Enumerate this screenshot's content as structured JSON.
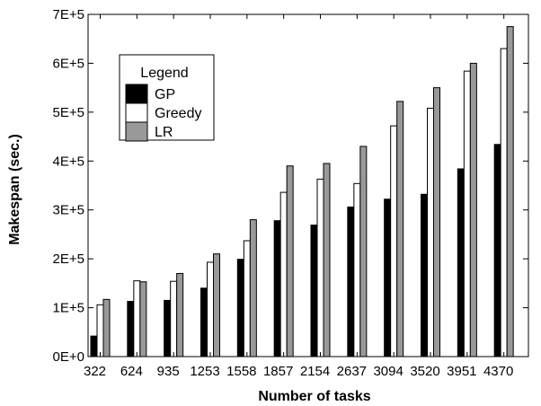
{
  "chart_data": {
    "type": "bar",
    "xlabel": "Number of tasks",
    "ylabel": "Makespan (sec.)",
    "categories": [
      "322",
      "624",
      "935",
      "1253",
      "1558",
      "1857",
      "2154",
      "2637",
      "3094",
      "3520",
      "3951",
      "4370"
    ],
    "ylim": [
      0,
      700000
    ],
    "yticks": [
      0,
      100000,
      200000,
      300000,
      400000,
      500000,
      600000,
      700000
    ],
    "ytick_labels": [
      "0E+0",
      "1E+5",
      "2E+5",
      "3E+5",
      "4E+5",
      "5E+5",
      "6E+5",
      "7E+5"
    ],
    "grid": false,
    "legend": {
      "title": "Legend",
      "position": "top-left"
    },
    "series": [
      {
        "name": "GP",
        "color": "#000000",
        "values": [
          42000,
          113000,
          115000,
          140000,
          199000,
          278000,
          269000,
          306000,
          322000,
          332000,
          384000,
          434000
        ]
      },
      {
        "name": "Greedy",
        "color": "#ffffff",
        "values": [
          106000,
          155000,
          154000,
          193000,
          237000,
          336000,
          363000,
          354000,
          472000,
          508000,
          584000,
          630000
        ]
      },
      {
        "name": "LR",
        "color": "#999999",
        "values": [
          117000,
          153000,
          170000,
          210000,
          280000,
          390000,
          395000,
          430000,
          522000,
          550000,
          600000,
          675000
        ]
      }
    ]
  }
}
